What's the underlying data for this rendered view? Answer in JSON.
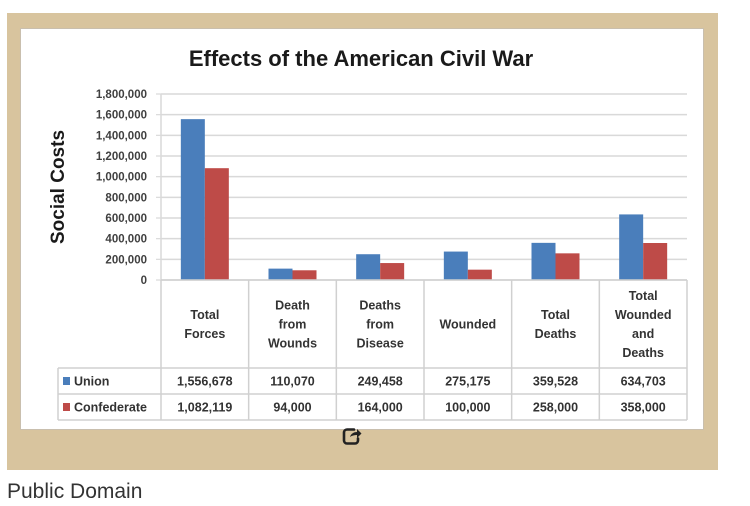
{
  "caption": "Public Domain",
  "share_icon": "share-icon",
  "colors": {
    "frame": "#d8c49e",
    "union": "#4a7ebb",
    "confederate": "#be4b48",
    "grid": "#d9d9d9"
  },
  "chart_data": {
    "type": "bar",
    "title": "Effects of the American Civil War",
    "xlabel": "",
    "ylabel": "Social Costs",
    "ylim": [
      0,
      1800000
    ],
    "yticks": [
      0,
      200000,
      400000,
      600000,
      800000,
      1000000,
      1200000,
      1400000,
      1600000,
      1800000
    ],
    "ytick_labels": [
      "0",
      "200,000",
      "400,000",
      "600,000",
      "800,000",
      "1,000,000",
      "1,200,000",
      "1,400,000",
      "1,600,000",
      "1,800,000"
    ],
    "grid": true,
    "legend": "data-table",
    "categories": [
      [
        "Total",
        "Forces"
      ],
      [
        "Death",
        "from",
        "Wounds"
      ],
      [
        "Deaths",
        "from",
        "Disease"
      ],
      [
        "Wounded"
      ],
      [
        "Total",
        "Deaths"
      ],
      [
        "Total",
        "Wounded",
        "and",
        "Deaths"
      ]
    ],
    "series": [
      {
        "name": "Union",
        "color": "#4a7ebb",
        "values": [
          1556678,
          110070,
          249458,
          275175,
          359528,
          634703
        ],
        "labels": [
          "1,556,678",
          "110,070",
          "249,458",
          "275,175",
          "359,528",
          "634,703"
        ]
      },
      {
        "name": "Confederate",
        "color": "#be4b48",
        "values": [
          1082119,
          94000,
          164000,
          100000,
          258000,
          358000
        ],
        "labels": [
          "1,082,119",
          "94,000",
          "164,000",
          "100,000",
          "258,000",
          "358,000"
        ]
      }
    ]
  }
}
